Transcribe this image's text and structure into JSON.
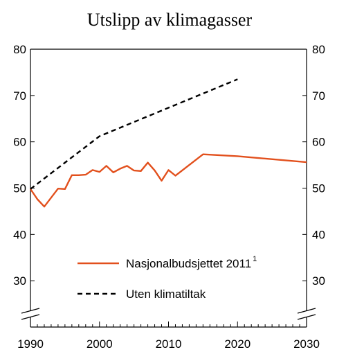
{
  "chart_data": {
    "type": "line",
    "title": "Utslipp av klimagasser",
    "xlabel": "",
    "ylabel": "",
    "xlim": [
      1990,
      2030
    ],
    "ylim": [
      20,
      80
    ],
    "x_ticks": [
      1990,
      2000,
      2010,
      2020,
      2030
    ],
    "y_ticks": [
      30,
      40,
      50,
      60,
      70,
      80
    ],
    "axis_break": true,
    "grid": false,
    "legend_placement": "lower-center",
    "series": [
      {
        "name": "Nasjonalbudsjettet 2011",
        "name_superscript": "1",
        "color": "#e2501d",
        "dash": "solid",
        "x": [
          1990,
          1991,
          1992,
          1994,
          1995,
          1996,
          1997,
          1998,
          1999,
          2000,
          2001,
          2002,
          2003,
          2004,
          2005,
          2006,
          2007,
          2008,
          2009,
          2010,
          2011,
          2015,
          2020,
          2030
        ],
        "y": [
          49.8,
          47.6,
          46.0,
          49.9,
          49.8,
          52.8,
          52.8,
          52.9,
          53.9,
          53.5,
          54.8,
          53.4,
          54.2,
          54.8,
          53.8,
          53.7,
          55.5,
          53.8,
          51.6,
          53.9,
          52.7,
          57.3,
          56.9,
          55.6
        ]
      },
      {
        "name": "Uten klimatiltak",
        "color": "#000000",
        "dash": "dashed",
        "x": [
          1990,
          2000,
          2020
        ],
        "y": [
          49.8,
          61.2,
          73.5
        ]
      }
    ]
  }
}
